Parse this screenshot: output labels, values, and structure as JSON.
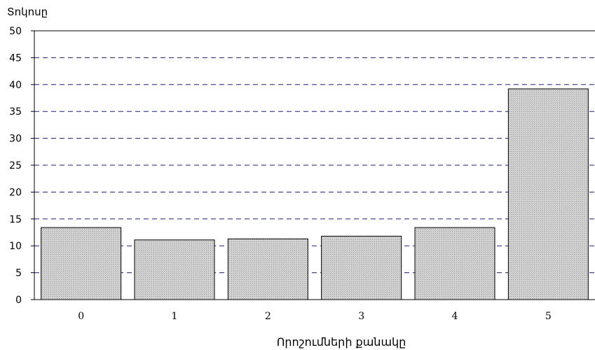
{
  "chart_data": {
    "type": "bar",
    "title": "",
    "xlabel": "Որոշումների քանակը",
    "ylabel": "Տոկոսը",
    "categories": [
      "0",
      "1",
      "2",
      "3",
      "4",
      "5"
    ],
    "values": [
      13.4,
      11.1,
      11.3,
      11.8,
      13.4,
      39.2
    ],
    "ylim": [
      0,
      50
    ],
    "yticks": [
      "0",
      "5",
      "10",
      "15",
      "20",
      "25",
      "30",
      "35",
      "40",
      "45",
      "50"
    ],
    "grid": true,
    "legend": "none",
    "colors": {
      "bar_fill": "#d2d2d2",
      "bar_stroke": "#000000",
      "grid": "#1f1f7a",
      "axis": "#000000"
    }
  }
}
